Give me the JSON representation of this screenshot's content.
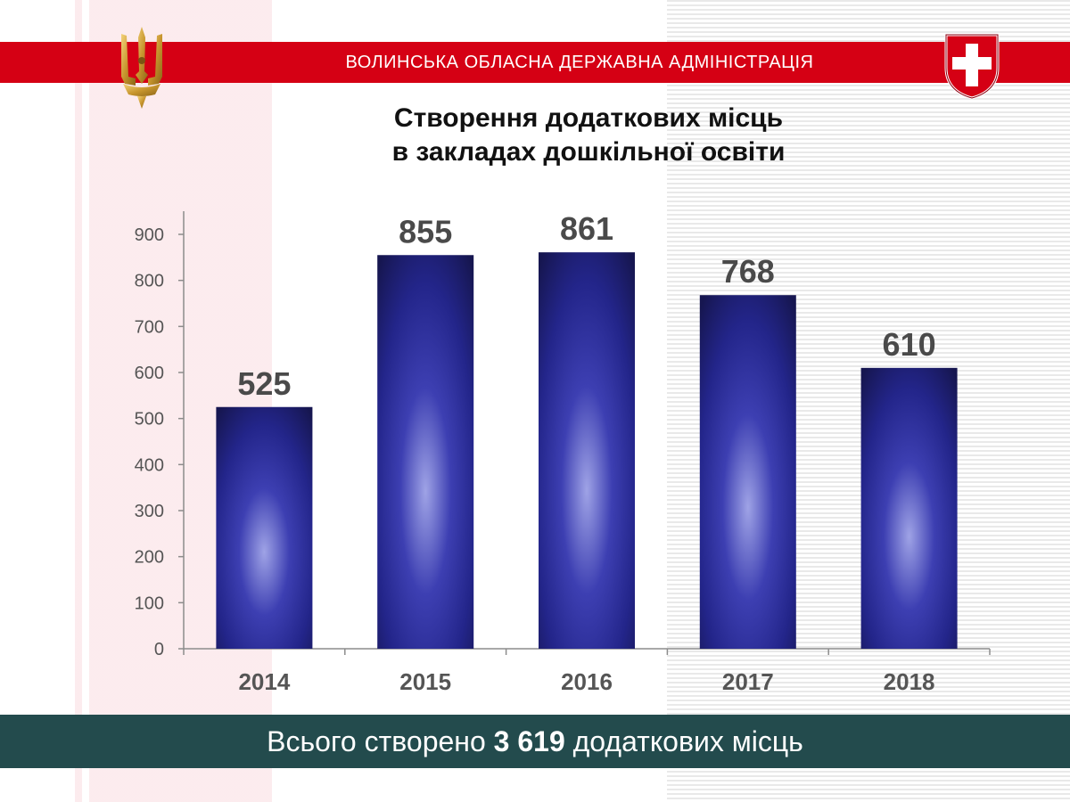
{
  "header": {
    "org_name": "ВОЛИНСЬКА ОБЛАСНА ДЕРЖАВНА АДМІНІСТРАЦІЯ"
  },
  "colors": {
    "header_red": "#d50014",
    "footer_teal": "#234b4d",
    "bar_dark": "#1a1b5e",
    "bar_light": "#9fa3e6",
    "value_label": "#4a4a4a"
  },
  "chart_data": {
    "type": "bar",
    "title": "Створення додаткових місць в закладах дошкільної освіти",
    "title_lines": [
      "Створення додаткових місць",
      "в закладах дошкільної освіти"
    ],
    "categories": [
      "2014",
      "2015",
      "2016",
      "2017",
      "2018"
    ],
    "values": [
      525,
      855,
      861,
      768,
      610
    ],
    "ylim": [
      0,
      900
    ],
    "yticks": [
      0,
      100,
      200,
      300,
      400,
      500,
      600,
      700,
      800,
      900
    ],
    "xlabel": "",
    "ylabel": "",
    "grid": false,
    "legend": "none",
    "data_labels": [
      "525",
      "855",
      "861",
      "768",
      "610"
    ]
  },
  "footer": {
    "prefix": "Всього створено ",
    "total": "3 619",
    "suffix": " додаткових місць"
  }
}
